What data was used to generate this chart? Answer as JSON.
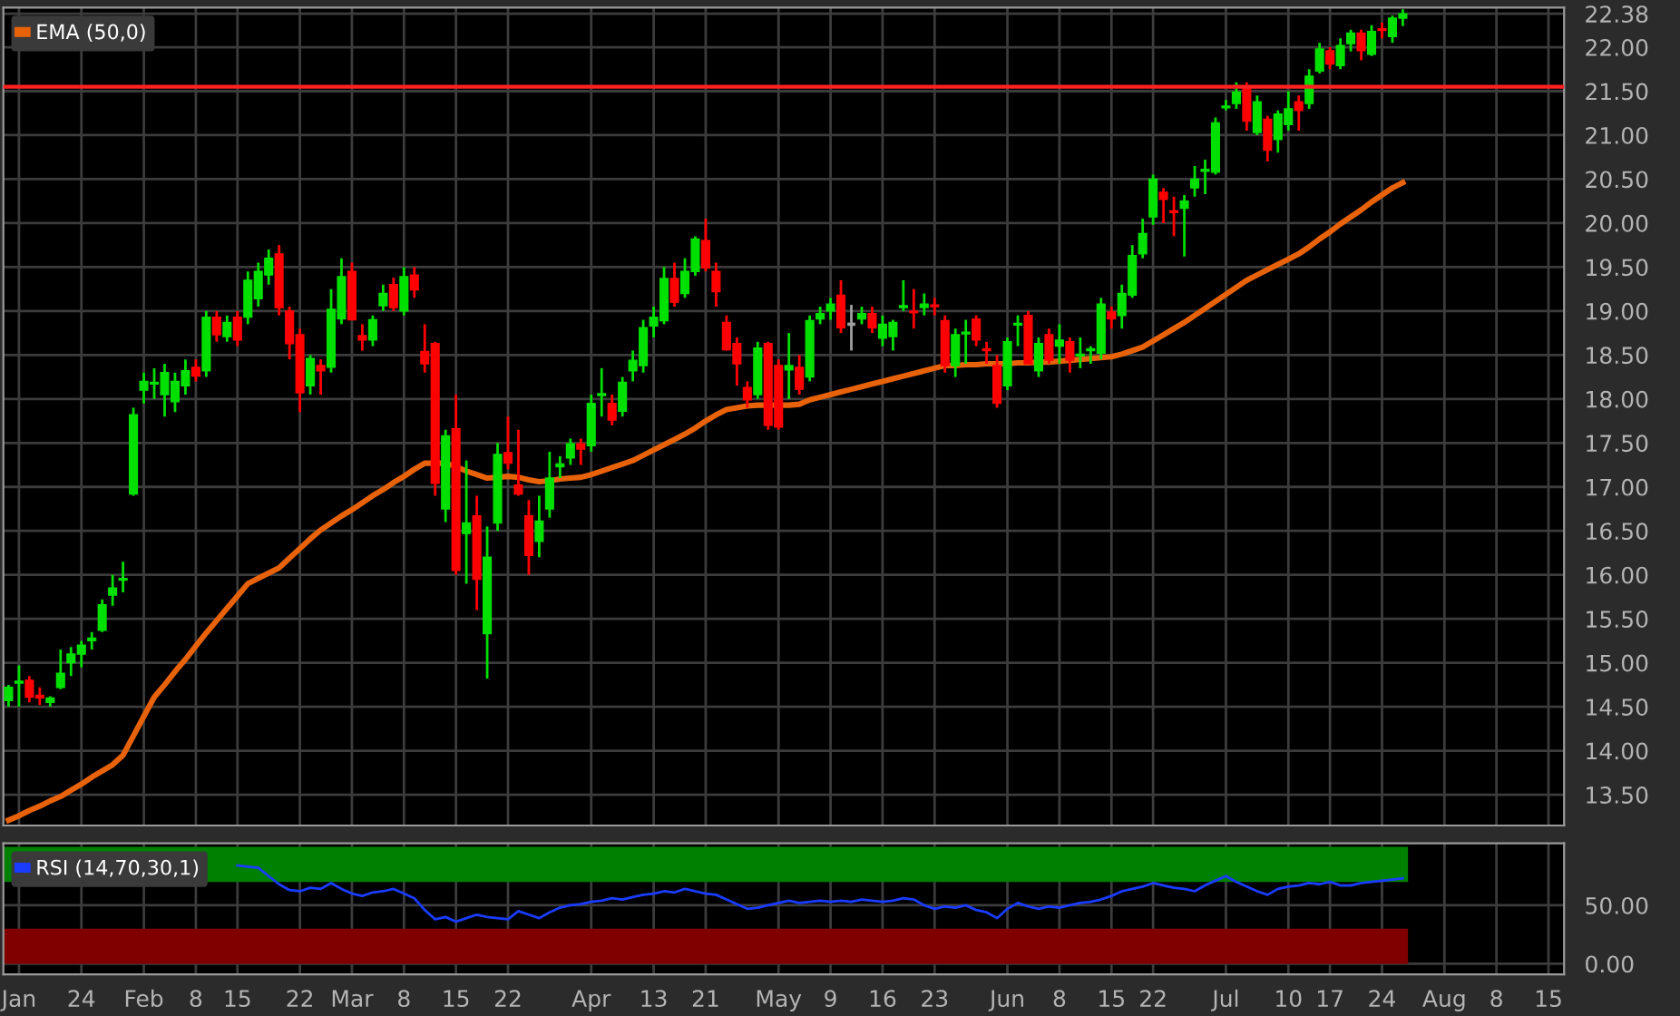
{
  "chart_data": [
    {
      "type": "candlestick",
      "tick_labels": "y",
      "grid": true,
      "legend": "top left",
      "categories": [
        null,
        null,
        null,
        null,
        null,
        null,
        null,
        null,
        null,
        null,
        null,
        null,
        null,
        null,
        null,
        null,
        null,
        null,
        null,
        null,
        null,
        null,
        null,
        null,
        null,
        null,
        null,
        null,
        null,
        null,
        null,
        null,
        null,
        null,
        null,
        null,
        null,
        null,
        null,
        null,
        null,
        null,
        null,
        null,
        null,
        null,
        null,
        null,
        null,
        null,
        null,
        null,
        null,
        null,
        null,
        null,
        null,
        null,
        null,
        null,
        null,
        null,
        null,
        null,
        null,
        null,
        null,
        null,
        null,
        null,
        null,
        null,
        null,
        null,
        null,
        null,
        null,
        null,
        null,
        null,
        null,
        null,
        null,
        null,
        null,
        null,
        null,
        null,
        null,
        null,
        null,
        null,
        null,
        null,
        null,
        null,
        null,
        null,
        null,
        null,
        null,
        null,
        null,
        null,
        null,
        null,
        null,
        null,
        null,
        null,
        null,
        null,
        null,
        null,
        null,
        null,
        null,
        null,
        null,
        null,
        null,
        null,
        null,
        null,
        null,
        null,
        null,
        null,
        null,
        null,
        null,
        null,
        null,
        null,
        null,
        null,
        null,
        null,
        null,
        null,
        null,
        null,
        null,
        null,
        null,
        null,
        null,
        null,
        null,
        null
      ],
      "ohlc": [
        [
          14.57,
          14.75,
          14.5,
          14.72
        ],
        [
          14.77,
          14.97,
          14.5,
          14.79
        ],
        [
          14.8,
          14.85,
          14.55,
          14.61
        ],
        [
          14.63,
          14.72,
          14.52,
          14.6
        ],
        [
          14.55,
          14.62,
          14.5,
          14.6
        ],
        [
          14.72,
          15.15,
          14.7,
          14.88
        ],
        [
          15.0,
          15.18,
          14.85,
          15.1
        ],
        [
          15.1,
          15.25,
          14.95,
          15.2
        ],
        [
          15.25,
          15.35,
          15.15,
          15.28
        ],
        [
          15.37,
          15.72,
          15.35,
          15.66
        ],
        [
          15.77,
          16.0,
          15.65,
          15.85
        ],
        [
          15.94,
          16.15,
          15.8,
          15.96
        ],
        [
          16.92,
          17.9,
          16.9,
          17.82
        ],
        [
          18.1,
          18.3,
          17.95,
          18.2
        ],
        [
          18.17,
          18.35,
          18.0,
          18.19
        ],
        [
          18.05,
          18.4,
          17.8,
          18.3
        ],
        [
          17.97,
          18.3,
          17.85,
          18.2
        ],
        [
          18.15,
          18.45,
          18.05,
          18.32
        ],
        [
          18.36,
          18.45,
          18.2,
          18.26
        ],
        [
          18.32,
          19.0,
          18.25,
          18.93
        ],
        [
          18.93,
          19.0,
          18.65,
          18.73
        ],
        [
          18.71,
          18.95,
          18.65,
          18.87
        ],
        [
          18.93,
          19.0,
          18.6,
          18.67
        ],
        [
          18.93,
          19.45,
          18.85,
          19.35
        ],
        [
          19.14,
          19.55,
          19.05,
          19.45
        ],
        [
          19.41,
          19.7,
          19.3,
          19.6
        ],
        [
          19.65,
          19.75,
          18.95,
          19.04
        ],
        [
          19.0,
          19.05,
          18.45,
          18.63
        ],
        [
          18.73,
          18.8,
          17.85,
          18.07
        ],
        [
          18.15,
          18.5,
          18.05,
          18.46
        ],
        [
          18.38,
          18.45,
          18.05,
          18.32
        ],
        [
          18.36,
          19.25,
          18.3,
          19.02
        ],
        [
          18.91,
          19.6,
          18.85,
          19.39
        ],
        [
          19.45,
          19.55,
          18.9,
          18.9
        ],
        [
          18.72,
          18.85,
          18.55,
          18.67
        ],
        [
          18.67,
          18.95,
          18.6,
          18.9
        ],
        [
          19.06,
          19.3,
          19.0,
          19.2
        ],
        [
          19.3,
          19.38,
          19.0,
          19.04
        ],
        [
          19.0,
          19.5,
          18.95,
          19.39
        ],
        [
          19.41,
          19.5,
          19.15,
          19.24
        ],
        [
          18.54,
          18.85,
          18.3,
          18.4
        ],
        [
          18.63,
          18.65,
          16.9,
          17.04
        ],
        [
          16.75,
          17.65,
          16.6,
          17.58
        ],
        [
          17.66,
          18.05,
          16.0,
          16.05
        ],
        [
          16.47,
          17.3,
          15.9,
          16.59
        ],
        [
          16.67,
          16.9,
          15.6,
          15.95
        ],
        [
          15.33,
          16.55,
          14.82,
          16.2
        ],
        [
          16.59,
          17.5,
          16.5,
          17.37
        ],
        [
          17.39,
          17.8,
          17.2,
          17.27
        ],
        [
          17.02,
          17.65,
          16.9,
          16.92
        ],
        [
          16.67,
          16.85,
          16.0,
          16.22
        ],
        [
          16.38,
          16.9,
          16.2,
          16.61
        ],
        [
          16.75,
          17.4,
          16.65,
          17.1
        ],
        [
          17.23,
          17.35,
          17.1,
          17.26
        ],
        [
          17.33,
          17.55,
          17.25,
          17.49
        ],
        [
          17.49,
          17.55,
          17.25,
          17.43
        ],
        [
          17.47,
          18.05,
          17.4,
          17.95
        ],
        [
          18.04,
          18.35,
          17.8,
          18.06
        ],
        [
          17.95,
          18.05,
          17.7,
          17.76
        ],
        [
          17.86,
          18.25,
          17.8,
          18.19
        ],
        [
          18.32,
          18.55,
          18.2,
          18.44
        ],
        [
          18.38,
          18.9,
          18.3,
          18.81
        ],
        [
          18.83,
          19.05,
          18.7,
          18.93
        ],
        [
          18.89,
          19.5,
          18.85,
          19.37
        ],
        [
          19.37,
          19.55,
          19.05,
          19.1
        ],
        [
          19.2,
          19.6,
          19.15,
          19.45
        ],
        [
          19.45,
          19.85,
          19.4,
          19.82
        ],
        [
          19.8,
          20.05,
          19.45,
          19.49
        ],
        [
          19.45,
          19.55,
          19.05,
          19.22
        ],
        [
          18.87,
          18.95,
          18.55,
          18.56
        ],
        [
          18.63,
          18.7,
          18.15,
          18.4
        ],
        [
          18.13,
          18.2,
          17.9,
          17.99
        ],
        [
          18.05,
          18.65,
          18.0,
          18.58
        ],
        [
          18.63,
          18.65,
          17.65,
          17.7
        ],
        [
          18.38,
          18.45,
          17.65,
          17.68
        ],
        [
          18.33,
          18.75,
          18.0,
          18.38
        ],
        [
          18.36,
          18.5,
          18.05,
          18.11
        ],
        [
          18.25,
          18.95,
          18.2,
          18.89
        ],
        [
          18.91,
          19.05,
          18.85,
          18.97
        ],
        [
          19.0,
          19.15,
          18.9,
          19.08
        ],
        [
          19.18,
          19.35,
          18.75,
          18.81
        ],
        [
          18.85,
          19.07,
          18.55,
          18.85
        ],
        [
          18.91,
          19.05,
          18.85,
          18.97
        ],
        [
          18.97,
          19.05,
          18.75,
          18.81
        ],
        [
          18.69,
          18.95,
          18.6,
          18.85
        ],
        [
          18.71,
          18.9,
          18.55,
          18.87
        ],
        [
          19.04,
          19.35,
          19.0,
          19.06
        ],
        [
          19.0,
          19.25,
          18.8,
          18.98
        ],
        [
          19.04,
          19.2,
          18.95,
          19.08
        ],
        [
          19.07,
          19.15,
          18.95,
          19.05
        ],
        [
          18.89,
          18.95,
          18.3,
          18.38
        ],
        [
          18.38,
          18.8,
          18.25,
          18.73
        ],
        [
          18.74,
          18.9,
          18.4,
          18.76
        ],
        [
          18.91,
          18.95,
          18.6,
          18.67
        ],
        [
          18.57,
          18.65,
          18.4,
          18.55
        ],
        [
          18.38,
          18.5,
          17.9,
          17.95
        ],
        [
          18.15,
          18.7,
          18.1,
          18.65
        ],
        [
          18.84,
          18.95,
          18.6,
          18.86
        ],
        [
          18.95,
          19.0,
          18.4,
          18.4
        ],
        [
          18.32,
          18.7,
          18.25,
          18.63
        ],
        [
          18.73,
          18.8,
          18.4,
          18.44
        ],
        [
          18.6,
          18.85,
          18.4,
          18.67
        ],
        [
          18.65,
          18.7,
          18.3,
          18.44
        ],
        [
          18.49,
          18.7,
          18.35,
          18.51
        ],
        [
          18.55,
          18.6,
          18.4,
          18.57
        ],
        [
          18.52,
          19.15,
          18.45,
          19.08
        ],
        [
          18.99,
          19.05,
          18.8,
          18.91
        ],
        [
          18.95,
          19.3,
          18.8,
          19.2
        ],
        [
          19.18,
          19.75,
          19.15,
          19.63
        ],
        [
          19.65,
          20.05,
          19.6,
          19.88
        ],
        [
          20.07,
          20.55,
          19.98,
          20.5
        ],
        [
          20.35,
          20.4,
          20.0,
          20.27
        ],
        [
          20.14,
          20.3,
          19.85,
          20.12
        ],
        [
          20.17,
          20.32,
          19.62,
          20.25
        ],
        [
          20.4,
          20.65,
          20.3,
          20.5
        ],
        [
          20.59,
          20.72,
          20.33,
          20.61
        ],
        [
          20.58,
          21.2,
          20.55,
          21.14
        ],
        [
          21.31,
          21.4,
          21.28,
          21.33
        ],
        [
          21.36,
          21.6,
          21.3,
          21.49
        ],
        [
          21.53,
          21.6,
          21.05,
          21.16
        ],
        [
          21.03,
          21.45,
          21.0,
          21.38
        ],
        [
          21.18,
          21.22,
          20.7,
          20.83
        ],
        [
          20.95,
          21.28,
          20.8,
          21.24
        ],
        [
          21.12,
          21.5,
          21.05,
          21.3
        ],
        [
          21.38,
          21.45,
          21.05,
          21.28
        ],
        [
          21.36,
          21.75,
          21.3,
          21.67
        ],
        [
          21.73,
          22.05,
          21.7,
          21.98
        ],
        [
          21.96,
          22.0,
          21.75,
          21.81
        ],
        [
          21.79,
          22.1,
          21.75,
          22.02
        ],
        [
          22.04,
          22.2,
          21.95,
          22.16
        ],
        [
          22.16,
          22.2,
          21.85,
          21.96
        ],
        [
          21.92,
          22.25,
          21.9,
          22.18
        ],
        [
          22.21,
          22.28,
          22.1,
          22.19
        ],
        [
          22.12,
          22.36,
          22.05,
          22.33
        ],
        [
          22.33,
          22.43,
          22.24,
          22.38
        ],
        null,
        null,
        null,
        null,
        null,
        null,
        null,
        null,
        null,
        null,
        null,
        null,
        null,
        null,
        null
      ],
      "series": [
        {
          "name": "EMA (50,0)",
          "type": "line",
          "color": "#e8620a",
          "values": [
            13.21,
            13.26,
            13.32,
            13.37,
            13.43,
            13.48,
            13.55,
            13.62,
            13.7,
            13.77,
            13.84,
            13.95,
            14.17,
            14.39,
            14.61,
            14.75,
            14.9,
            15.04,
            15.19,
            15.34,
            15.48,
            15.62,
            15.76,
            15.9,
            15.96,
            16.02,
            16.08,
            16.19,
            16.3,
            16.41,
            16.51,
            16.59,
            16.67,
            16.74,
            16.82,
            16.9,
            16.97,
            17.05,
            17.12,
            17.2,
            17.27,
            17.27,
            17.27,
            17.23,
            17.18,
            17.14,
            17.1,
            17.11,
            17.12,
            17.11,
            17.08,
            17.06,
            17.07,
            17.09,
            17.1,
            17.11,
            17.14,
            17.18,
            17.22,
            17.26,
            17.3,
            17.36,
            17.42,
            17.48,
            17.54,
            17.6,
            17.67,
            17.75,
            17.82,
            17.88,
            17.9,
            17.92,
            17.93,
            17.93,
            17.93,
            17.93,
            17.94,
            17.99,
            18.02,
            18.05,
            18.08,
            18.11,
            18.14,
            18.17,
            18.2,
            18.23,
            18.26,
            18.29,
            18.32,
            18.35,
            18.38,
            18.38,
            18.39,
            18.39,
            18.4,
            18.4,
            18.4,
            18.41,
            18.41,
            18.42,
            18.42,
            18.43,
            18.44,
            18.45,
            18.46,
            18.47,
            18.48,
            18.51,
            18.55,
            18.59,
            18.66,
            18.73,
            18.8,
            18.87,
            18.95,
            19.03,
            19.11,
            19.19,
            19.27,
            19.35,
            19.41,
            19.47,
            19.53,
            19.59,
            19.65,
            19.73,
            19.82,
            19.9,
            19.99,
            20.07,
            20.15,
            20.24,
            20.32,
            20.4,
            20.46,
            null,
            null,
            null,
            null,
            null,
            null,
            null,
            null,
            null,
            null,
            null,
            null,
            null,
            null,
            null
          ]
        }
      ],
      "ylim": [
        13.15,
        22.45
      ],
      "yticks": [
        {
          "value": 13.5,
          "label": "13.50"
        },
        {
          "value": 14,
          "label": "14.00"
        },
        {
          "value": 14.5,
          "label": "14.50"
        },
        {
          "value": 15,
          "label": "15.00"
        },
        {
          "value": 15.5,
          "label": "15.50"
        },
        {
          "value": 16,
          "label": "16.00"
        },
        {
          "value": 16.5,
          "label": "16.50"
        },
        {
          "value": 17,
          "label": "17.00"
        },
        {
          "value": 17.5,
          "label": "17.50"
        },
        {
          "value": 18,
          "label": "18.00"
        },
        {
          "value": 18.5,
          "label": "18.50"
        },
        {
          "value": 19,
          "label": "19.00"
        },
        {
          "value": 19.5,
          "label": "19.50"
        },
        {
          "value": 20,
          "label": "20.00"
        },
        {
          "value": 20.5,
          "label": "20.50"
        },
        {
          "value": 21,
          "label": "21.00"
        },
        {
          "value": 21.5,
          "label": "21.50"
        },
        {
          "value": 22,
          "label": "22.00"
        },
        22.38
      ],
      "ref_lines": [
        {
          "axis": "y",
          "value": 21.55,
          "color": "#ff2020"
        }
      ]
    },
    {
      "type": "line",
      "grid": true,
      "legend": "top left",
      "marker": "none",
      "categories": [
        null,
        "Jan",
        null,
        null,
        null,
        null,
        null,
        "24",
        null,
        null,
        null,
        null,
        null,
        "Feb",
        null,
        null,
        null,
        null,
        "8",
        null,
        null,
        null,
        "15",
        null,
        null,
        null,
        null,
        null,
        "22",
        null,
        null,
        null,
        null,
        "Mar",
        null,
        null,
        null,
        null,
        "8",
        null,
        null,
        null,
        null,
        "15",
        null,
        null,
        null,
        null,
        "22",
        null,
        null,
        null,
        null,
        null,
        null,
        null,
        "Apr",
        null,
        null,
        null,
        null,
        null,
        "13",
        null,
        null,
        null,
        null,
        "21",
        null,
        null,
        null,
        null,
        null,
        null,
        "May",
        null,
        null,
        null,
        null,
        "9",
        null,
        null,
        null,
        null,
        "16",
        null,
        null,
        null,
        null,
        "23",
        null,
        null,
        null,
        null,
        null,
        null,
        "Jun",
        null,
        null,
        null,
        null,
        "8",
        null,
        null,
        null,
        null,
        "15",
        null,
        null,
        null,
        "22",
        null,
        null,
        null,
        null,
        null,
        null,
        "Jul",
        null,
        null,
        null,
        null,
        null,
        "10",
        null,
        null,
        null,
        "17",
        null,
        null,
        null,
        null,
        "24",
        null,
        null,
        null,
        null,
        null,
        "Aug",
        null,
        null,
        null,
        null,
        "8",
        null,
        null,
        null,
        null,
        "15",
        null
      ],
      "series": [
        {
          "name": "RSI (14,70,30,1)",
          "color": "#1a3cff",
          "values": [
            null,
            null,
            null,
            null,
            null,
            null,
            null,
            null,
            null,
            null,
            null,
            null,
            null,
            null,
            null,
            null,
            null,
            null,
            null,
            null,
            null,
            null,
            84,
            83,
            82,
            75,
            68,
            63,
            62,
            65,
            64,
            69,
            64,
            60,
            58,
            61,
            62,
            64,
            60,
            56,
            46,
            38,
            40,
            36,
            39,
            42,
            40,
            39,
            38,
            45,
            42,
            39,
            44,
            48,
            50,
            51,
            53,
            54,
            56,
            55,
            57,
            59,
            60,
            62,
            61,
            64,
            62,
            60,
            59,
            55,
            51,
            47,
            48,
            50,
            52,
            54,
            52,
            53,
            54,
            53,
            54,
            53,
            55,
            54,
            53,
            54,
            56,
            55,
            50,
            47,
            49,
            48,
            50,
            46,
            44,
            39,
            47,
            52,
            49,
            47,
            49,
            48,
            50,
            52,
            53,
            55,
            58,
            62,
            64,
            66,
            69,
            67,
            65,
            64,
            62,
            67,
            71,
            75,
            70,
            66,
            62,
            59,
            64,
            66,
            67,
            69,
            68,
            70,
            67,
            67,
            69,
            70,
            71,
            72,
            73,
            null,
            null,
            null,
            null,
            null,
            null,
            null,
            null,
            null,
            null,
            null,
            null,
            null,
            null,
            null
          ]
        }
      ],
      "ylim": [
        -9,
        103
      ],
      "yticks": [
        {
          "value": 0,
          "label": "0.00"
        },
        {
          "value": 50,
          "label": "50.00"
        }
      ],
      "bands": [
        {
          "axis": "y",
          "from": 70,
          "to": 100,
          "color": "#008000"
        },
        {
          "axis": "y",
          "from": 0,
          "to": 30,
          "color": "#800000"
        }
      ]
    }
  ]
}
